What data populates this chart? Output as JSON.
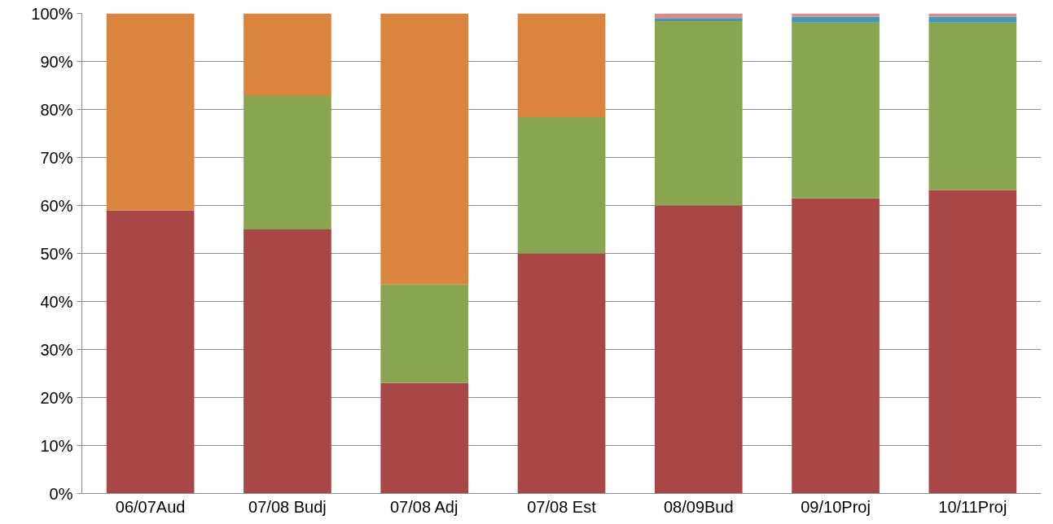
{
  "chart_data": {
    "type": "bar",
    "stacked": true,
    "categories": [
      "06/07Aud",
      "07/08 Budj",
      "07/08 Adj",
      "07/08 Est",
      "08/09Bud",
      "09/10Proj",
      "10/11Proj"
    ],
    "series": [
      {
        "color": "#a84745",
        "values": [
          59,
          55,
          23,
          50,
          60,
          61.5,
          63.2
        ]
      },
      {
        "color": "#8aa54f",
        "values": [
          null,
          27.8,
          20.5,
          28.4,
          38.4,
          36.6,
          34.9
        ]
      },
      {
        "color": "#4298b5",
        "values": [
          null,
          null,
          null,
          null,
          0.5,
          1.2,
          1.2
        ]
      },
      {
        "color": "#d4908f",
        "values": [
          null,
          null,
          null,
          null,
          1.1,
          0.7,
          0.7
        ]
      },
      {
        "color": "#db843d",
        "values": [
          41,
          17.2,
          56.5,
          21.6,
          null,
          null,
          null
        ]
      }
    ],
    "ylim": [
      0,
      100
    ],
    "yticks": [
      {
        "value": 0,
        "label": "0%"
      },
      {
        "value": 10,
        "label": "10%"
      },
      {
        "value": 20,
        "label": "20%"
      },
      {
        "value": 30,
        "label": "30%"
      },
      {
        "value": 40,
        "label": "40%"
      },
      {
        "value": 50,
        "label": "50%"
      },
      {
        "value": 60,
        "label": "60%"
      },
      {
        "value": 70,
        "label": "70%"
      },
      {
        "value": 80,
        "label": "80%"
      },
      {
        "value": 90,
        "label": "90%"
      },
      {
        "value": 100,
        "label": "100%"
      }
    ],
    "grid": "y"
  }
}
